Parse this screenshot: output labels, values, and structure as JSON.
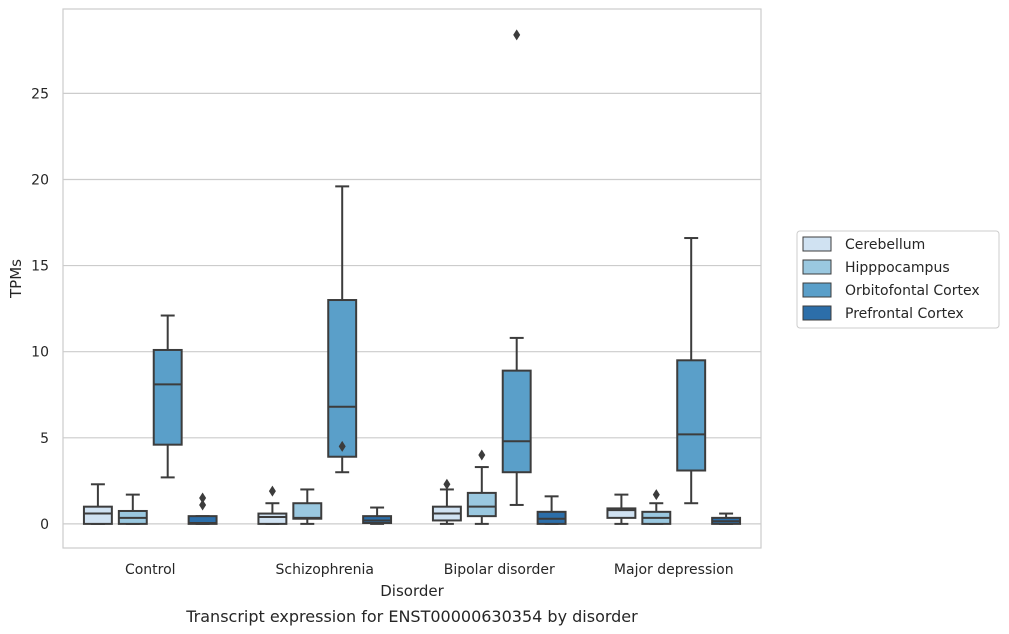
{
  "chart_data": {
    "type": "box",
    "title": "",
    "caption": "Transcript expression for ENST00000630354 by disorder",
    "xlabel": "Disorder",
    "ylabel": "TPMs",
    "ylim": [
      -1.4,
      29.9
    ],
    "yticks": [
      0,
      5,
      10,
      15,
      20,
      25
    ],
    "categories": [
      "Control",
      "Schizophrenia",
      "Bipolar disorder",
      "Major depression"
    ],
    "grid": "horizontal",
    "legend_position": "right",
    "series": [
      {
        "name": "Cerebellum",
        "color": "#d0e2f2",
        "boxes": [
          {
            "whisker_low": 0.0,
            "q1": 0.0,
            "median": 0.6,
            "q3": 1.0,
            "whisker_high": 2.3,
            "outliers": []
          },
          {
            "whisker_low": 0.0,
            "q1": 0.0,
            "median": 0.4,
            "q3": 0.6,
            "whisker_high": 1.2,
            "outliers": [
              1.9
            ]
          },
          {
            "whisker_low": 0.0,
            "q1": 0.2,
            "median": 0.6,
            "q3": 1.0,
            "whisker_high": 2.0,
            "outliers": [
              2.3
            ]
          },
          {
            "whisker_low": 0.0,
            "q1": 0.35,
            "median": 0.8,
            "q3": 0.9,
            "whisker_high": 1.7,
            "outliers": []
          }
        ]
      },
      {
        "name": "Hipppocampus",
        "color": "#9ac8e0",
        "boxes": [
          {
            "whisker_low": 0.0,
            "q1": 0.0,
            "median": 0.35,
            "q3": 0.75,
            "whisker_high": 1.7,
            "outliers": []
          },
          {
            "whisker_low": 0.0,
            "q1": 0.3,
            "median": 0.35,
            "q3": 1.2,
            "whisker_high": 2.0,
            "outliers": []
          },
          {
            "whisker_low": 0.0,
            "q1": 0.45,
            "median": 1.0,
            "q3": 1.8,
            "whisker_high": 3.3,
            "outliers": [
              4.0
            ]
          },
          {
            "whisker_low": 0.0,
            "q1": 0.0,
            "median": 0.35,
            "q3": 0.7,
            "whisker_high": 1.2,
            "outliers": [
              1.7
            ]
          }
        ]
      },
      {
        "name": "Orbitofontal Cortex",
        "color": "#5a9fc9",
        "boxes": [
          {
            "whisker_low": 2.7,
            "q1": 4.6,
            "median": 8.1,
            "q3": 10.1,
            "whisker_high": 12.1,
            "outliers": []
          },
          {
            "whisker_low": 3.0,
            "q1": 3.9,
            "median": 6.8,
            "q3": 13.0,
            "whisker_high": 19.6,
            "outliers": [
              4.5
            ]
          },
          {
            "whisker_low": 1.1,
            "q1": 3.0,
            "median": 4.8,
            "q3": 8.9,
            "whisker_high": 10.8,
            "outliers": [
              28.4
            ]
          },
          {
            "whisker_low": 1.2,
            "q1": 3.1,
            "median": 5.2,
            "q3": 9.5,
            "whisker_high": 16.6,
            "outliers": []
          }
        ]
      },
      {
        "name": "Prefrontal Cortex",
        "color": "#2c6ea9",
        "boxes": [
          {
            "whisker_low": 0.0,
            "q1": 0.0,
            "median": 0.05,
            "q3": 0.45,
            "whisker_high": 0.45,
            "outliers": [
              1.1,
              1.5
            ]
          },
          {
            "whisker_low": 0.0,
            "q1": 0.05,
            "median": 0.2,
            "q3": 0.45,
            "whisker_high": 0.95,
            "outliers": []
          },
          {
            "whisker_low": 0.0,
            "q1": 0.0,
            "median": 0.3,
            "q3": 0.7,
            "whisker_high": 1.6,
            "outliers": []
          },
          {
            "whisker_low": 0.0,
            "q1": 0.0,
            "median": 0.15,
            "q3": 0.35,
            "whisker_high": 0.6,
            "outliers": []
          }
        ]
      }
    ]
  }
}
